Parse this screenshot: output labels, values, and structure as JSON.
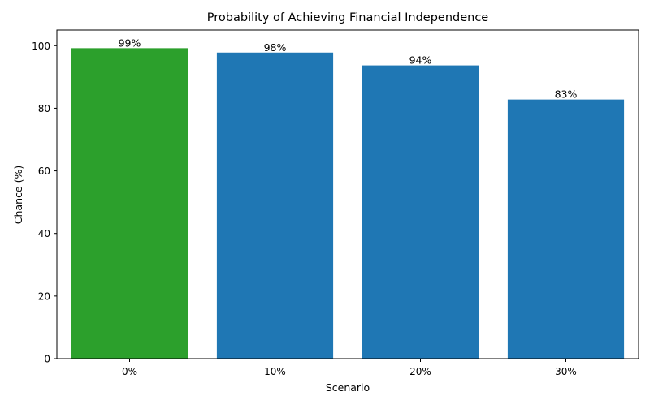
{
  "chart_data": {
    "type": "bar",
    "title": "Probability of Achieving Financial Independence",
    "xlabel": "Scenario",
    "ylabel": "Chance (%)",
    "categories": [
      "0%",
      "10%",
      "20%",
      "30%"
    ],
    "values": [
      99.2,
      97.8,
      93.7,
      82.8
    ],
    "value_labels": [
      "99%",
      "98%",
      "94%",
      "83%"
    ],
    "colors": [
      "#2ca02c",
      "#1f77b4",
      "#1f77b4",
      "#1f77b4"
    ],
    "ylim": [
      0,
      105
    ],
    "yticks": [
      0,
      20,
      40,
      60,
      80,
      100
    ],
    "grid": false,
    "legend": "none"
  }
}
